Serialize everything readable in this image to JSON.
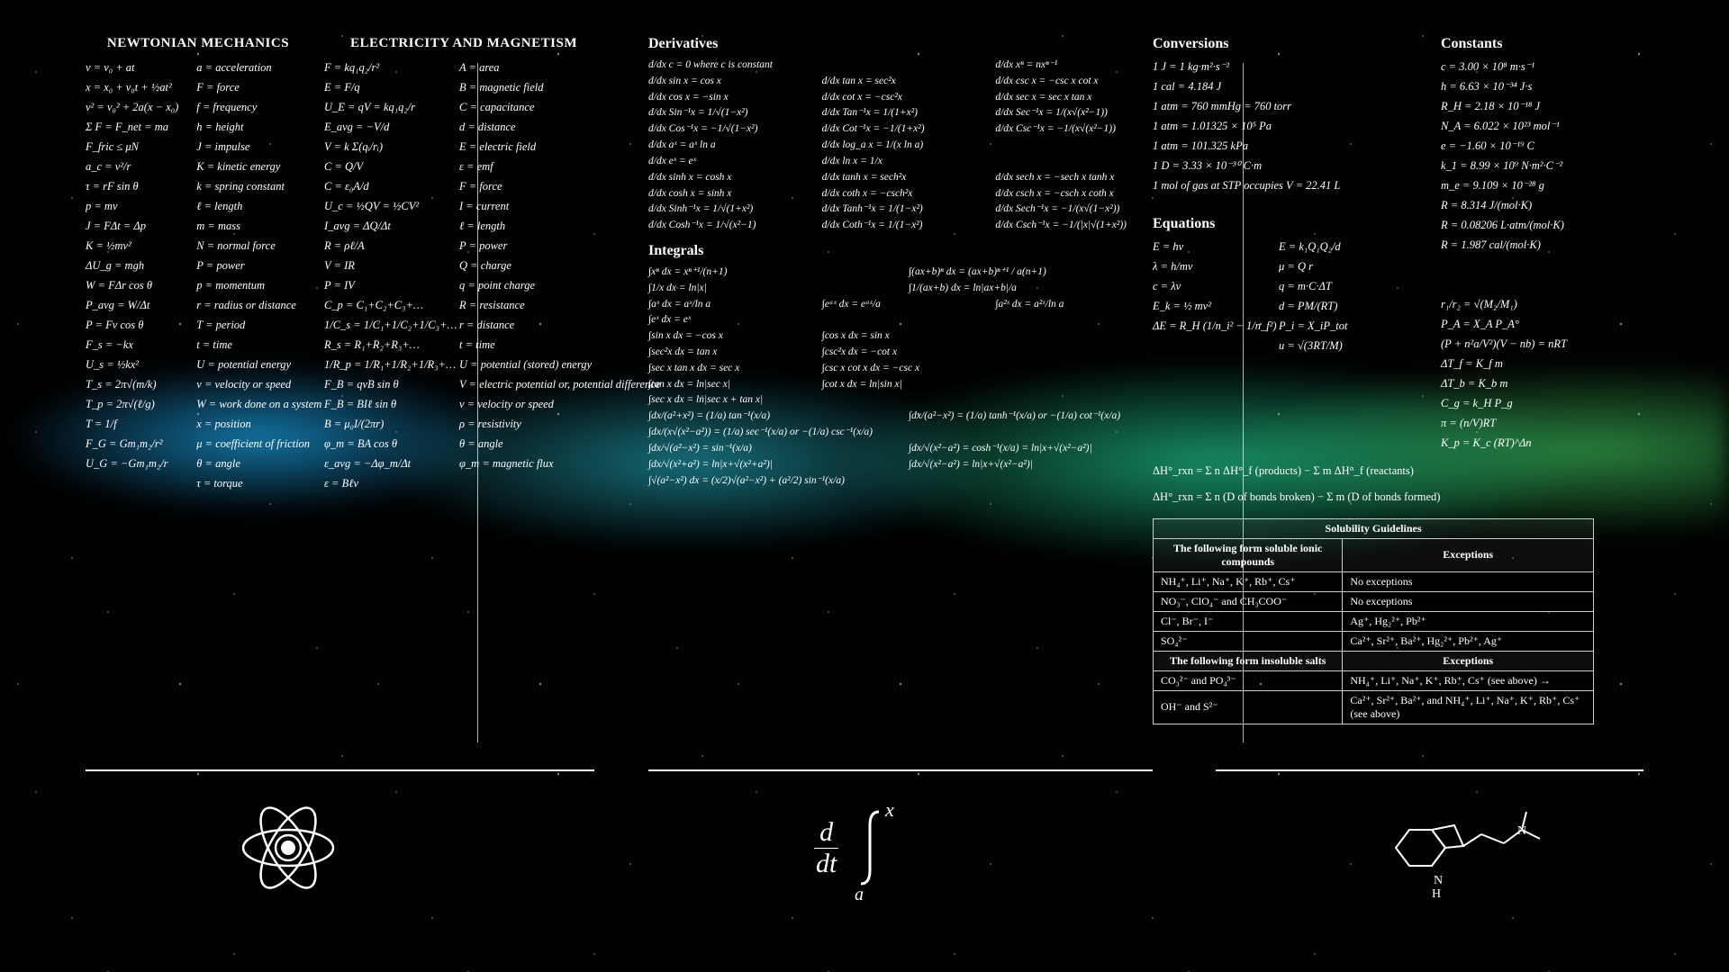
{
  "background": {
    "base_color": "#000000",
    "text_color": "#ffffff",
    "nebula_colors": [
      "#1eb4ff",
      "#28c8dc",
      "#28ffb4",
      "#50ff78"
    ]
  },
  "physics": {
    "heading_newtonian": "NEWTONIAN MECHANICS",
    "heading_em": "ELECTRICITY AND MAGNETISM",
    "newtonian_formulas": [
      "v = v₀ + at",
      "x = x₀ + v₀t + ½at²",
      "v² = v₀² + 2a(x − x₀)",
      "Σ F = F_net = ma",
      "F_fric ≤ μN",
      "a_c = v²/r",
      "τ = rF sin θ",
      "p = mv",
      "J = FΔt = Δp",
      "K = ½mv²",
      "ΔU_g = mgh",
      "W = FΔr cos θ",
      "P_avg = W/Δt",
      "P = Fv cos θ",
      "F_s = −kx",
      "U_s = ½kx²",
      "T_s = 2π√(m/k)",
      "T_p = 2π√(ℓ/g)",
      "T = 1/f",
      "F_G = Gm₁m₂/r²",
      "U_G = −Gm₁m₂/r"
    ],
    "newtonian_legend": [
      "a = acceleration",
      "F = force",
      "f = frequency",
      "h = height",
      "J = impulse",
      "K = kinetic energy",
      "k = spring constant",
      "ℓ = length",
      "m = mass",
      "N = normal force",
      "P = power",
      "p = momentum",
      "r = radius or distance",
      "T = period",
      "t = time",
      "U = potential energy",
      "v = velocity or speed",
      "W = work done on a system",
      "x = position",
      "μ = coefficient of friction",
      "θ = angle",
      "τ = torque"
    ],
    "em_formulas": [
      "F = kq₁q₂/r²",
      "E = F/q",
      "U_E = qV = kq₁q₂/r",
      "E_avg = −V/d",
      "V = k Σ(qᵢ/rᵢ)",
      "C = Q/V",
      "C = ε₀A/d",
      "U_c = ½QV = ½CV²",
      "I_avg = ΔQ/Δt",
      "R = ρℓ/A",
      "V = IR",
      "P = IV",
      "C_p = C₁+C₂+C₃+…",
      "1/C_s = 1/C₁+1/C₂+1/C₃+…",
      "R_s = R₁+R₂+R₃+…",
      "1/R_p = 1/R₁+1/R₂+1/R₃+…",
      "F_B = qvB sin θ",
      "F_B = BIℓ sin θ",
      "B = μ₀I/(2πr)",
      "φ_m = BA cos θ",
      "ε_avg = −Δφ_m/Δt",
      "ε = Bℓv"
    ],
    "em_legend": [
      "A = area",
      "B = magnetic field",
      "C = capacitance",
      "d = distance",
      "E = electric field",
      "ε = emf",
      "F = force",
      "I = current",
      "ℓ = length",
      "P = power",
      "Q = charge",
      "q = point charge",
      "R = resistance",
      "r = distance",
      "t = time",
      "U = potential (stored) energy",
      "V = electric potential or, potential difference",
      "v = velocity or speed",
      "ρ = resistivity",
      "θ = angle",
      "φ_m = magnetic flux"
    ]
  },
  "calculus": {
    "heading_deriv": "Derivatives",
    "heading_int": "Integrals",
    "derivatives": [
      [
        "d/dx c = 0  where c is constant",
        " ",
        "d/dx xⁿ = nxⁿ⁻¹"
      ],
      [
        "d/dx sin x = cos x",
        "d/dx tan x = sec²x",
        "d/dx csc x = −csc x cot x"
      ],
      [
        "d/dx cos x = −sin x",
        "d/dx cot x = −csc²x",
        "d/dx sec x = sec x tan x"
      ],
      [
        "d/dx Sin⁻¹x = 1/√(1−x²)",
        "d/dx Tan⁻¹x = 1/(1+x²)",
        "d/dx Sec⁻¹x = 1/(x√(x²−1))"
      ],
      [
        "d/dx Cos⁻¹x = −1/√(1−x²)",
        "d/dx Cot⁻¹x = −1/(1+x²)",
        "d/dx Csc⁻¹x = −1/(x√(x²−1))"
      ],
      [
        "d/dx aˣ = aˣ ln a",
        "d/dx log_a x = 1/(x ln a)",
        " "
      ],
      [
        "d/dx eˣ = eˣ",
        "d/dx ln x = 1/x",
        " "
      ],
      [
        "d/dx sinh x = cosh x",
        "d/dx tanh x = sech²x",
        "d/dx sech x = −sech x tanh x"
      ],
      [
        "d/dx cosh x = sinh x",
        "d/dx coth x = −csch²x",
        "d/dx csch x = −csch x coth x"
      ],
      [
        "d/dx Sinh⁻¹x = 1/√(1+x²)",
        "d/dx Tanh⁻¹x = 1/(1−x²)",
        "d/dx Sech⁻¹x = −1/(x√(1−x²))"
      ],
      [
        "d/dx Cosh⁻¹x = 1/√(x²−1)",
        "d/dx Coth⁻¹x = 1/(1−x²)",
        "d/dx Csch⁻¹x = −1/(|x|√(1+x²))"
      ]
    ],
    "integrals": [
      [
        "∫xⁿ dx = xⁿ⁺¹/(n+1)",
        "∫(ax+b)ⁿ dx = (ax+b)ⁿ⁺¹ / a(n+1)"
      ],
      [
        "∫1/x dx = ln|x|",
        "∫1/(ax+b) dx = ln|ax+b|/a"
      ],
      [
        "∫aˣ dx = aˣ/ln a",
        "∫eᵃˣ dx = eᵃˣ/a",
        "∫a²ˣ dx = a²ˣ/ln a"
      ],
      [
        "∫eˣ dx = eˣ",
        "",
        ""
      ],
      [
        "∫sin x dx = −cos x",
        "∫cos x dx = sin x",
        ""
      ],
      [
        "∫sec²x dx = tan x",
        "∫csc²x dx = −cot x",
        ""
      ],
      [
        "∫sec x tan x dx = sec x",
        "∫csc x cot x dx = −csc x",
        ""
      ],
      [
        "∫tan x dx = ln|sec x|",
        "∫cot x dx = ln|sin x|",
        ""
      ],
      [
        "∫sec x dx = ln|sec x + tan x|",
        "",
        ""
      ],
      [
        "∫dx/(a²+x²) = (1/a) tan⁻¹(x/a)",
        "∫dx/(a²−x²) = (1/a) tanh⁻¹(x/a)  or  −(1/a) cot⁻¹(x/a)"
      ],
      [
        "∫dx/(x√(x²−a²)) = (1/a) sec⁻¹(x/a)  or  −(1/a) csc⁻¹(x/a)",
        ""
      ],
      [
        "∫dx/√(a²−x²) = sin⁻¹(x/a)",
        "∫dx/√(x²−a²) = cosh⁻¹(x/a) = ln|x+√(x²−a²)|"
      ],
      [
        "∫dx/√(x²+a²) = ln|x+√(x²+a²)|",
        "∫dx/√(x²−a²) = ln|x+√(x²−a²)|"
      ],
      [
        "∫√(a²−x²) dx = (x/2)√(a²−x²) + (a²/2) sin⁻¹(x/a)",
        ""
      ]
    ]
  },
  "chemistry": {
    "heading_conv": "Conversions",
    "heading_const": "Constants",
    "heading_eq": "Equations",
    "conversions": [
      "1 J = 1 kg·m²·s⁻²",
      "1 cal = 4.184 J",
      "1 atm = 760 mmHg = 760 torr",
      "1 atm = 1.01325 × 10⁵ Pa",
      "1 atm = 101.325 kPa",
      "1 D = 3.33 × 10⁻³⁰ C·m",
      "1 mol of gas at STP occupies V = 22.41 L"
    ],
    "constants": [
      "c = 3.00 × 10⁸ m·s⁻¹",
      "h = 6.63 × 10⁻³⁴ J·s",
      "R_H = 2.18 × 10⁻¹⁸ J",
      "N_A = 6.022 × 10²³ mol⁻¹",
      "e = −1.60 × 10⁻¹⁹ C",
      "k_1 = 8.99 × 10⁹ N·m²·C⁻²",
      "m_e = 9.109 × 10⁻²⁸ g",
      "R = 8.314 J/(mol·K)",
      "R = 0.08206 L·atm/(mol·K)",
      "R = 1.987 cal/(mol·K)"
    ],
    "equations_left": [
      "E = hν",
      "λ = h/mv",
      "c = λν",
      "E_k = ½ mv²",
      "ΔE = R_H (1/n_i² − 1/n_f²)"
    ],
    "equations_mid": [
      "E = k₁Q₁Q₂/d",
      "μ = Q r",
      "q = m·C·ΔT",
      "d = PM/(RT)",
      "P_i = X_iP_tot",
      "u = √(3RT/M)"
    ],
    "equations_right": [
      "r₁/r₂ = √(M₂/M₁)",
      "P_A = X_A P_A°",
      "(P + n²a/V²)(V − nb) = nRT",
      "ΔT_f = K_f m",
      "ΔT_b = K_b m",
      "C_g = k_H P_g",
      "π = (n/V)RT",
      "K_p = K_c (RT)^Δn"
    ],
    "hess1": "ΔH°_rxn = Σ n ΔH°_f (products) − Σ m ΔH°_f (reactants)",
    "hess2": "ΔH°_rxn = Σ n (D of bonds broken) − Σ m (D of bonds formed)",
    "solubility": {
      "title": "Solubility Guidelines",
      "head_sol": "The following form soluble ionic compounds",
      "head_exc": "Exceptions",
      "rows_sol": [
        [
          "NH₄⁺, Li⁺, Na⁺, K⁺, Rb⁺, Cs⁺",
          "No exceptions"
        ],
        [
          "NO₃⁻, ClO₄⁻ and CH₃COO⁻",
          "No exceptions"
        ],
        [
          "Cl⁻, Br⁻, I⁻",
          "Ag⁺, Hg₂²⁺, Pb²⁺"
        ],
        [
          "SO₄²⁻",
          "Ca²⁺, Sr²⁺, Ba²⁺, Hg₂²⁺, Pb²⁺, Ag⁺"
        ]
      ],
      "head_insol": "The following form insoluble salts",
      "rows_insol": [
        [
          "CO₃²⁻ and PO₄³⁻",
          "NH₄⁺, Li⁺, Na⁺, K⁺, Rb⁺, Cs⁺ (see above) →"
        ],
        [
          "OH⁻ and S²⁻",
          "Ca²⁺, Sr²⁺, Ba²⁺, and NH₄⁺, Li⁺, Na⁺, K⁺, Rb⁺, Cs⁺ (see above)"
        ]
      ]
    }
  },
  "footer_icons": {
    "atom": "atom-icon",
    "calculus": "d/dt ∫ₐˣ",
    "molecule": "dmt-molecule-icon"
  }
}
